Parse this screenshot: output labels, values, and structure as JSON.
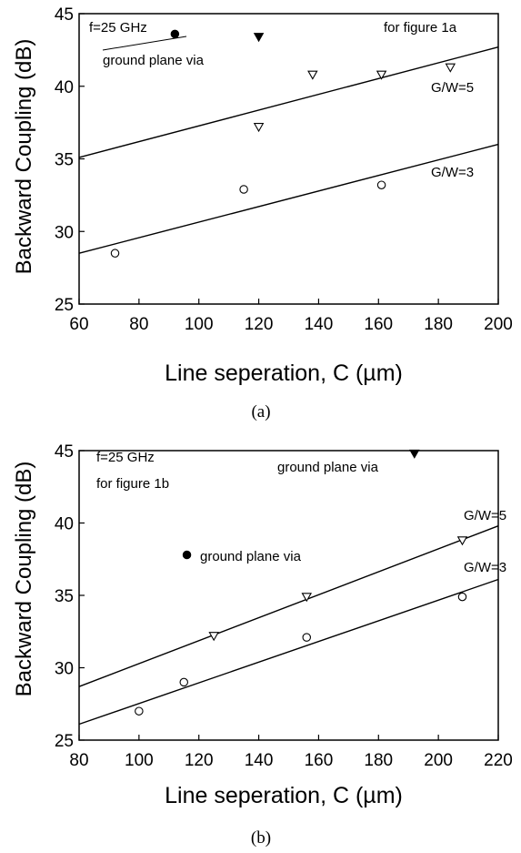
{
  "chart_data": [
    {
      "type": "scatter",
      "caption": "(a)",
      "xlabel": "Line seperation, C (µm)",
      "ylabel": "Backward Coupling (dB)",
      "xlim": [
        60,
        200
      ],
      "ylim": [
        25,
        45
      ],
      "xticks": [
        60,
        80,
        100,
        120,
        140,
        160,
        180,
        200
      ],
      "yticks": [
        25,
        30,
        35,
        40,
        45
      ],
      "grid": false,
      "series": [
        {
          "name": "G/W=5",
          "marker": "triangle-down-open",
          "x": [
            120,
            138,
            161,
            184
          ],
          "y": [
            37.2,
            40.8,
            40.8,
            41.3
          ]
        },
        {
          "name": "G/W=3",
          "marker": "circle-open",
          "x": [
            72,
            115,
            161
          ],
          "y": [
            28.5,
            32.9,
            33.2
          ]
        },
        {
          "name": "",
          "marker": "triangle-down-filled",
          "x": [
            120
          ],
          "y": [
            43.4
          ]
        },
        {
          "name": "",
          "marker": "circle-filled",
          "x": [
            92
          ],
          "y": [
            43.6
          ]
        }
      ],
      "fit_lines": [
        {
          "name": "G/W=5",
          "x": [
            60,
            200
          ],
          "y": [
            35.1,
            42.7
          ]
        },
        {
          "name": "G/W=3",
          "x": [
            60,
            200
          ],
          "y": [
            28.5,
            36.0
          ]
        }
      ],
      "annotations": {
        "freq": "f=25 GHz",
        "figure": "for figure 1a",
        "via": "ground plane via",
        "gw5": "G/W=5",
        "gw3": "G/W=3"
      }
    },
    {
      "type": "scatter",
      "caption": "(b)",
      "xlabel": "Line seperation, C (µm)",
      "ylabel": "Backward Coupling (dB)",
      "xlim": [
        80,
        220
      ],
      "ylim": [
        25,
        45
      ],
      "xticks": [
        80,
        100,
        120,
        140,
        160,
        180,
        200,
        220
      ],
      "yticks": [
        25,
        30,
        35,
        40,
        45
      ],
      "grid": false,
      "series": [
        {
          "name": "G/W=5",
          "marker": "triangle-down-open",
          "x": [
            125,
            156,
            208
          ],
          "y": [
            32.2,
            34.9,
            38.8
          ]
        },
        {
          "name": "G/W=3",
          "marker": "circle-open",
          "x": [
            100,
            115,
            156,
            208
          ],
          "y": [
            27.0,
            29.0,
            32.1,
            34.9
          ]
        },
        {
          "name": "",
          "marker": "triangle-down-filled",
          "x": [
            192
          ],
          "y": [
            44.8
          ]
        },
        {
          "name": "",
          "marker": "circle-filled",
          "x": [
            116
          ],
          "y": [
            37.8
          ]
        }
      ],
      "fit_lines": [
        {
          "name": "G/W=5",
          "x": [
            80,
            220
          ],
          "y": [
            28.7,
            39.8
          ]
        },
        {
          "name": "G/W=3",
          "x": [
            80,
            220
          ],
          "y": [
            26.1,
            36.1
          ]
        }
      ],
      "annotations": {
        "freq": "f=25 GHz",
        "figure": "for figure 1b",
        "via_top": "ground plane via",
        "via_mid": "ground plane via",
        "gw5": "G/W=5",
        "gw3": "G/W=3"
      }
    }
  ]
}
